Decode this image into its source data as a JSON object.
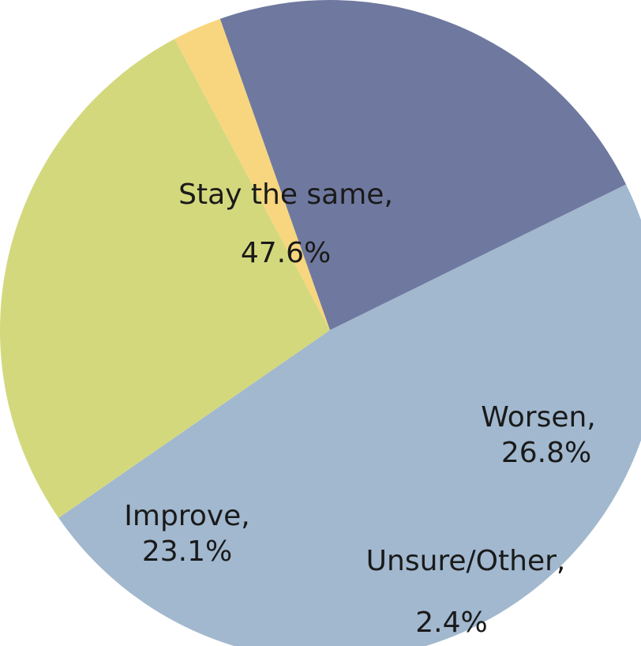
{
  "chart_data": {
    "type": "pie",
    "categories": [
      "Stay the same,",
      "Worsen,",
      "Unsure/Other,",
      "Improve,"
    ],
    "values": [
      47.6,
      26.8,
      2.4,
      23.1
    ],
    "value_labels": [
      "47.6%",
      "26.8%",
      "2.4%",
      "23.1%"
    ],
    "colors": [
      "#a1b8cf",
      "#d3d87d",
      "#f8d67f",
      "#6f799f"
    ]
  }
}
